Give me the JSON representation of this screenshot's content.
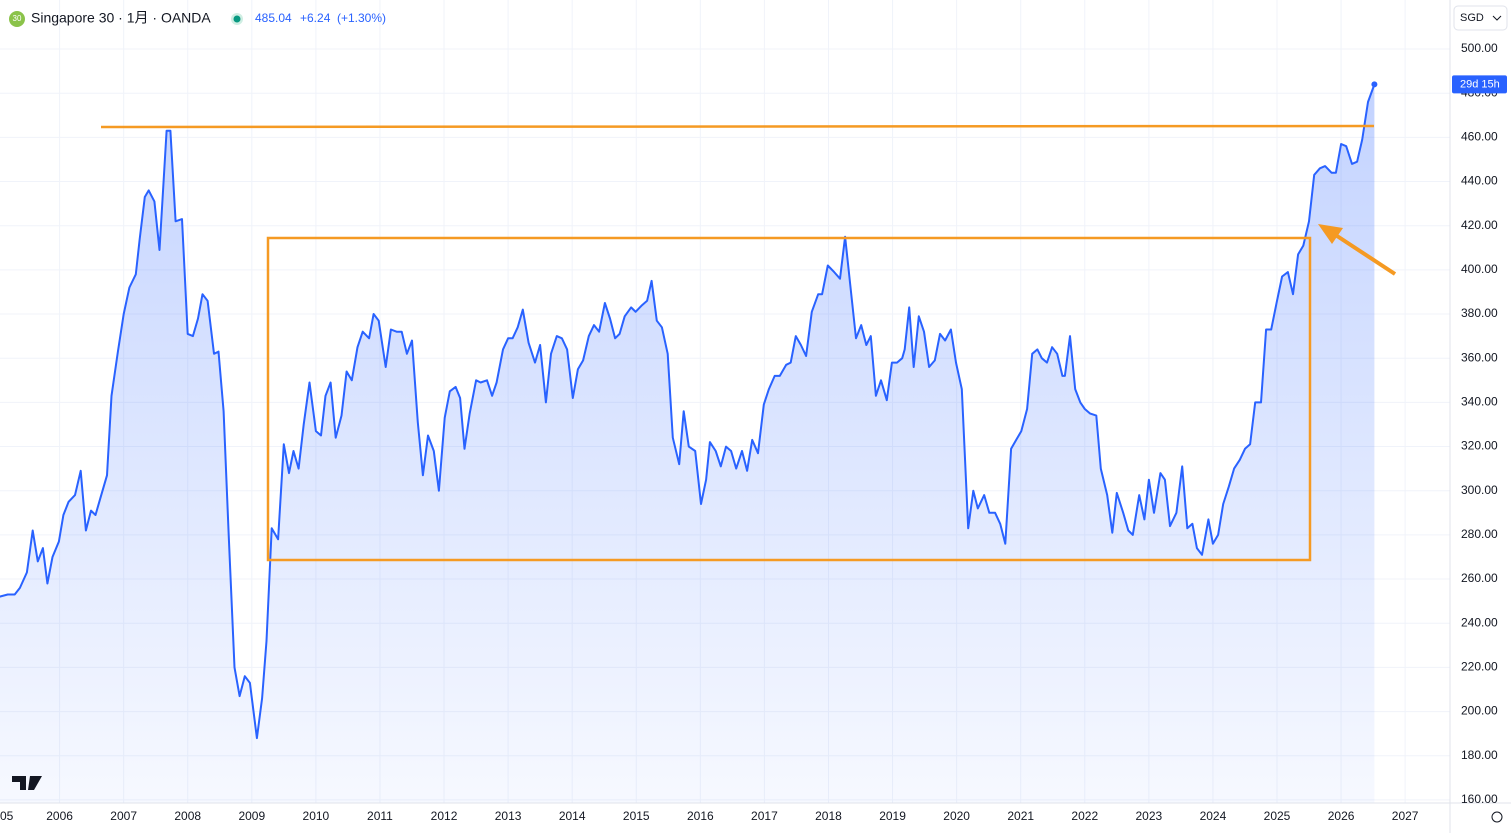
{
  "chart_data": {
    "type": "area",
    "title": "Singapore 30 · 1月 · OANDA",
    "icon_label": "30",
    "price": "485.04",
    "change": "+6.24",
    "change_pct": "(+1.30%)",
    "currency": "SGD",
    "countdown": "29d 15h",
    "grid": true,
    "xlim": [
      2005.07,
      2027.7
    ],
    "ylim": [
      158.6,
      522.2
    ],
    "xticks": [
      {
        "value": 2005,
        "label": "05"
      },
      2006,
      2007,
      2008,
      2009,
      2010,
      2011,
      2012,
      2013,
      2014,
      2015,
      2016,
      2017,
      2018,
      2019,
      2020,
      2021,
      2022,
      2023,
      2024,
      2025,
      2026,
      2027
    ],
    "yticks": [
      {
        "value": 160,
        "label": "160.00"
      },
      {
        "value": 180,
        "label": "180.00"
      },
      {
        "value": 200,
        "label": "200.00"
      },
      {
        "value": 220,
        "label": "220.00"
      },
      {
        "value": 240,
        "label": "240.00"
      },
      {
        "value": 260,
        "label": "260.00"
      },
      {
        "value": 280,
        "label": "280.00"
      },
      {
        "value": 300,
        "label": "300.00"
      },
      {
        "value": 320,
        "label": "320.00"
      },
      {
        "value": 340,
        "label": "340.00"
      },
      {
        "value": 360,
        "label": "360.00"
      },
      {
        "value": 380,
        "label": "380.00"
      },
      {
        "value": 400,
        "label": "400.00"
      },
      {
        "value": 420,
        "label": "420.00"
      },
      {
        "value": 440,
        "label": "440.00"
      },
      {
        "value": 460,
        "label": "460.00"
      },
      {
        "value": 480,
        "label": "480.00"
      },
      {
        "value": 500,
        "label": "500.00"
      }
    ],
    "x": [
      2005.06,
      2005.19,
      2005.3,
      2005.38,
      2005.49,
      2005.58,
      2005.66,
      2005.74,
      2005.81,
      2005.89,
      2005.99,
      2006.06,
      2006.14,
      2006.24,
      2006.33,
      2006.41,
      2006.49,
      2006.56,
      2006.64,
      2006.74,
      2006.81,
      2006.91,
      2007.0,
      2007.09,
      2007.19,
      2007.25,
      2007.33,
      2007.39,
      2007.48,
      2007.56,
      2007.67,
      2007.73,
      2007.81,
      2007.91,
      2008.0,
      2008.08,
      2008.16,
      2008.23,
      2008.31,
      2008.41,
      2008.48,
      2008.56,
      2008.64,
      2008.73,
      2008.81,
      2008.89,
      2008.97,
      2009.08,
      2009.16,
      2009.23,
      2009.31,
      2009.41,
      2009.5,
      2009.58,
      2009.65,
      2009.73,
      2009.81,
      2009.9,
      2010.0,
      2010.08,
      2010.15,
      2010.23,
      2010.31,
      2010.4,
      2010.48,
      2010.56,
      2010.65,
      2010.73,
      2010.83,
      2010.9,
      2010.98,
      2011.09,
      2011.17,
      2011.26,
      2011.34,
      2011.42,
      2011.5,
      2011.59,
      2011.67,
      2011.75,
      2011.84,
      2011.92,
      2012.01,
      2012.09,
      2012.18,
      2012.25,
      2012.32,
      2012.4,
      2012.5,
      2012.57,
      2012.67,
      2012.75,
      2012.82,
      2012.92,
      2013.0,
      2013.07,
      2013.15,
      2013.23,
      2013.32,
      2013.42,
      2013.5,
      2013.59,
      2013.67,
      2013.76,
      2013.84,
      2013.92,
      2014.01,
      2014.09,
      2014.17,
      2014.26,
      2014.34,
      2014.42,
      2014.51,
      2014.59,
      2014.67,
      2014.74,
      2014.82,
      2014.92,
      2014.99,
      2015.09,
      2015.17,
      2015.24,
      2015.32,
      2015.4,
      2015.49,
      2015.57,
      2015.67,
      2015.74,
      2015.82,
      2015.92,
      2016.01,
      2016.09,
      2016.15,
      2016.24,
      2016.32,
      2016.4,
      2016.48,
      2016.56,
      2016.65,
      2016.73,
      2016.81,
      2016.9,
      2016.99,
      2017.07,
      2017.16,
      2017.24,
      2017.34,
      2017.41,
      2017.49,
      2017.57,
      2017.65,
      2017.74,
      2017.84,
      2017.9,
      2017.99,
      2018.09,
      2018.18,
      2018.26,
      2018.34,
      2018.43,
      2018.51,
      2018.59,
      2018.66,
      2018.74,
      2018.82,
      2018.91,
      2018.99,
      2019.07,
      2019.15,
      2019.19,
      2019.26,
      2019.33,
      2019.41,
      2019.49,
      2019.57,
      2019.66,
      2019.74,
      2019.82,
      2019.91,
      2019.99,
      2020.08,
      2020.18,
      2020.26,
      2020.33,
      2020.43,
      2020.51,
      2020.6,
      2020.68,
      2020.76,
      2020.85,
      2020.93,
      2021.01,
      2021.1,
      2021.18,
      2021.26,
      2021.33,
      2021.41,
      2021.49,
      2021.57,
      2021.65,
      2021.69,
      2021.77,
      2021.85,
      2021.93,
      2022.0,
      2022.08,
      2022.18,
      2022.25,
      2022.35,
      2022.43,
      2022.5,
      2022.6,
      2022.68,
      2022.75,
      2022.85,
      2022.93,
      2023.0,
      2023.08,
      2023.18,
      2023.25,
      2023.33,
      2023.43,
      2023.52,
      2023.6,
      2023.68,
      2023.75,
      2023.83,
      2023.93,
      2024.0,
      2024.08,
      2024.16,
      2024.25,
      2024.33,
      2024.42,
      2024.5,
      2024.58,
      2024.66,
      2024.75,
      2024.83,
      2024.91,
      2025.0,
      2025.08,
      2025.17,
      2025.25,
      2025.33,
      2025.41,
      2025.5,
      2025.58,
      2025.67,
      2025.75,
      2025.85,
      2025.92,
      2026.0,
      2026.08,
      2026.17,
      2026.25,
      2026.33,
      2026.42,
      2026.52
    ],
    "series": [
      {
        "color": "#2962ff",
        "values": [
          252,
          253,
          253,
          256,
          263,
          282,
          268,
          274,
          258,
          270,
          277,
          289,
          295,
          298,
          309,
          282,
          291,
          289,
          297,
          307,
          343,
          363,
          380,
          392,
          398,
          414,
          433,
          436,
          431,
          409,
          463,
          463,
          422,
          423,
          371,
          370,
          378,
          389,
          386,
          362,
          363,
          336,
          280,
          220,
          207,
          216,
          213,
          188,
          206,
          232,
          283,
          278,
          321,
          308,
          318,
          310,
          330,
          349,
          327,
          325,
          343,
          349,
          324,
          334,
          354,
          350,
          365,
          372,
          369,
          380,
          377,
          356,
          373,
          372,
          372,
          362,
          368,
          331,
          307,
          325,
          318,
          300,
          333,
          345,
          347,
          342,
          319,
          335,
          350,
          349,
          350,
          343,
          349,
          364,
          369,
          369,
          374,
          382,
          367,
          358,
          366,
          340,
          362,
          370,
          369,
          364,
          342,
          355,
          359,
          370,
          375,
          372,
          385,
          378,
          369,
          371,
          379,
          383,
          381,
          384,
          386,
          395,
          377,
          374,
          362,
          324,
          312,
          336,
          320,
          318,
          294,
          305,
          322,
          318,
          311,
          320,
          318,
          310,
          318,
          309,
          323,
          317,
          339,
          346,
          352,
          352,
          357,
          358,
          370,
          366,
          361,
          381,
          389,
          389,
          402,
          399,
          396,
          415,
          393,
          369,
          375,
          366,
          370,
          343,
          350,
          341,
          358,
          358,
          360,
          364,
          383,
          356,
          379,
          372,
          356,
          359,
          371,
          368,
          373,
          358,
          346,
          283,
          300,
          292,
          298,
          290,
          290,
          285,
          276,
          319,
          323,
          327,
          337,
          362,
          364,
          360,
          358,
          365,
          362,
          352,
          352,
          370,
          346,
          340,
          337,
          335,
          334,
          310,
          298,
          281,
          299,
          290,
          282,
          280,
          298,
          287,
          305,
          290,
          308,
          305,
          284,
          290,
          311,
          283,
          285,
          274,
          271,
          287,
          276,
          280,
          294,
          302,
          310,
          314,
          319,
          321,
          340,
          340,
          373,
          373,
          386,
          397,
          399,
          389,
          407,
          411,
          422,
          443,
          446,
          447,
          444,
          444,
          457,
          456,
          448,
          449,
          459,
          476,
          484
        ]
      }
    ]
  }
}
